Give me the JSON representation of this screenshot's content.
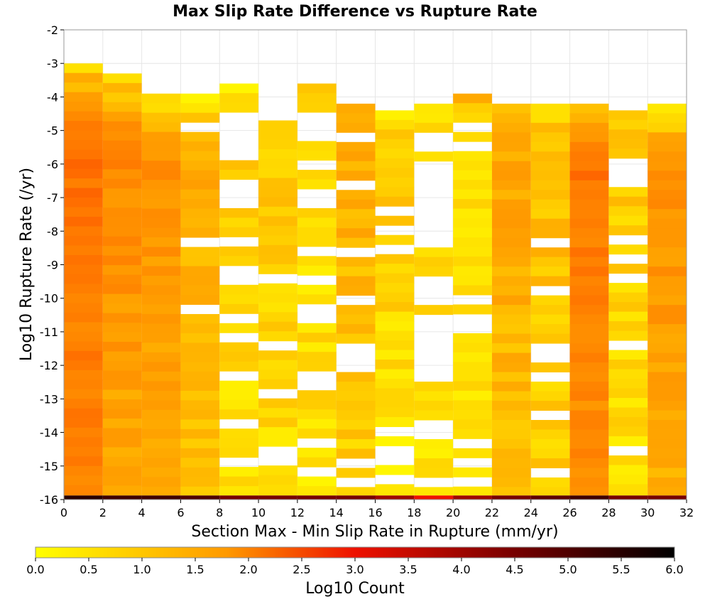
{
  "chart_data": {
    "type": "heatmap",
    "title": "Max Slip Rate Difference vs Rupture Rate",
    "xlabel": "Section Max - Min Slip Rate in Rupture (mm/yr)",
    "ylabel": "Log10 Rupture Rate (/yr)",
    "xlim": [
      0,
      32
    ],
    "ylim": [
      -16,
      -2
    ],
    "x_ticks": [
      "0",
      "2",
      "4",
      "6",
      "8",
      "10",
      "12",
      "14",
      "16",
      "18",
      "20",
      "22",
      "24",
      "26",
      "28",
      "30",
      "32"
    ],
    "y_ticks": [
      "-2",
      "-3",
      "-4",
      "-5",
      "-6",
      "-7",
      "-8",
      "-9",
      "-10",
      "-11",
      "-12",
      "-13",
      "-14",
      "-15",
      "-16"
    ],
    "x_bin_width": 2,
    "y_bin_height": 0.2857,
    "colorbar": {
      "label": "Log10 Count",
      "range": [
        0.0,
        6.0
      ],
      "ticks": [
        "0.0",
        "0.5",
        "1.0",
        "1.5",
        "2.0",
        "2.5",
        "3.0",
        "3.5",
        "4.0",
        "4.5",
        "5.0",
        "5.5",
        "6.0"
      ],
      "colors": [
        "#ffff00",
        "#ff9900",
        "#ee1100",
        "#770000",
        "#000000"
      ]
    },
    "columns": [
      {
        "x_start": 0,
        "top": -3.0,
        "log_count_top": 0.6,
        "log_count_mid": 1.9,
        "log_count_bottom": 1.6
      },
      {
        "x_start": 2,
        "top": -3.3,
        "log_count_top": 0.5,
        "log_count_mid": 1.6,
        "log_count_bottom": 1.0
      },
      {
        "x_start": 4,
        "top": -3.9,
        "log_count_top": 0.4,
        "log_count_mid": 1.4,
        "log_count_bottom": 1.0
      },
      {
        "x_start": 6,
        "top": -3.9,
        "log_count_top": 0.3,
        "log_count_mid": 1.0,
        "log_count_bottom": 0.6
      },
      {
        "x_start": 8,
        "top": -3.6,
        "log_count_top": 0.3,
        "log_count_mid": 0.6,
        "log_count_bottom": 0.3
      },
      {
        "x_start": 10,
        "top": -4.7,
        "log_count_top": 0.5,
        "log_count_mid": 0.6,
        "log_count_bottom": 0.4
      },
      {
        "x_start": 12,
        "top": -3.6,
        "log_count_top": 0.6,
        "log_count_mid": 0.5,
        "log_count_bottom": 0.3
      },
      {
        "x_start": 14,
        "top": -4.2,
        "log_count_top": 0.8,
        "log_count_mid": 1.0,
        "log_count_bottom": 0.5
      },
      {
        "x_start": 16,
        "top": -4.4,
        "log_count_top": 0.4,
        "log_count_mid": 0.6,
        "log_count_bottom": 0.3
      },
      {
        "x_start": 18,
        "top": -4.2,
        "log_count_top": 0.4,
        "log_count_mid": 0.4,
        "log_count_bottom": 0.3
      },
      {
        "x_start": 20,
        "top": -3.9,
        "log_count_top": 0.8,
        "log_count_mid": 0.4,
        "log_count_bottom": 0.3
      },
      {
        "x_start": 22,
        "top": -4.2,
        "log_count_top": 0.7,
        "log_count_mid": 1.1,
        "log_count_bottom": 0.7
      },
      {
        "x_start": 24,
        "top": -4.2,
        "log_count_top": 0.5,
        "log_count_mid": 0.8,
        "log_count_bottom": 0.5
      },
      {
        "x_start": 26,
        "top": -4.2,
        "log_count_top": 0.8,
        "log_count_mid": 1.9,
        "log_count_bottom": 1.4
      },
      {
        "x_start": 28,
        "top": -4.4,
        "log_count_top": 0.7,
        "log_count_mid": 0.6,
        "log_count_bottom": 0.4
      },
      {
        "x_start": 30,
        "top": -4.2,
        "log_count_top": 0.3,
        "log_count_mid": 1.5,
        "log_count_bottom": 1.0
      }
    ],
    "bottom_row": {
      "y": -16.0,
      "log_count_values": [
        5.5,
        5.2,
        5.2,
        5.0,
        4.5,
        4.5,
        4.5,
        4.5,
        4.0,
        3.0,
        4.0,
        4.5,
        4.8,
        5.2,
        4.5,
        4.5
      ]
    }
  }
}
